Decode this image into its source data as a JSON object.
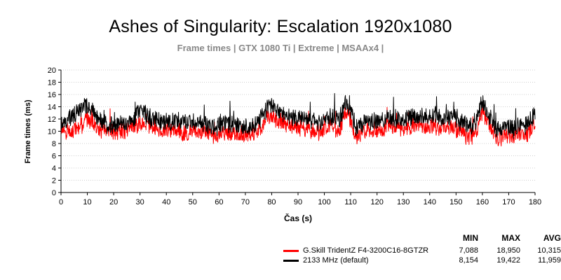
{
  "chart_data": {
    "type": "line",
    "title": "Ashes of Singularity: Escalation 1920x1080",
    "subtitle": "Frame times | GTX 1080 Ti | Extreme | MSAAx4 |",
    "xlabel": "Čas (s)",
    "ylabel": "Frame times (ms)",
    "xlim": [
      0,
      180
    ],
    "ylim": [
      0,
      20
    ],
    "x_ticks": [
      "0",
      "10",
      "20",
      "30",
      "40",
      "50",
      "60",
      "70",
      "80",
      "90",
      "100",
      "110",
      "120",
      "130",
      "140",
      "150",
      "160",
      "170",
      "180"
    ],
    "y_ticks": [
      "0",
      "2",
      "4",
      "6",
      "8",
      "10",
      "12",
      "14",
      "16",
      "18",
      "20"
    ],
    "legend_headers": {
      "min": "MIN",
      "max": "MAX",
      "avg": "AVG"
    },
    "series": [
      {
        "name": "G.Skill TridentZ F4-3200C16-8GTZR",
        "color": "#ff0000",
        "min": "7,088",
        "max": "18,950",
        "avg": "10,315",
        "x": [
          0,
          2,
          4,
          6,
          8,
          10,
          12,
          14,
          16,
          18,
          20,
          22,
          24,
          26,
          28,
          30,
          32,
          34,
          36,
          38,
          40,
          42,
          44,
          46,
          48,
          50,
          52,
          54,
          56,
          58,
          60,
          62,
          64,
          66,
          68,
          70,
          72,
          74,
          76,
          78,
          80,
          82,
          84,
          86,
          88,
          90,
          92,
          94,
          96,
          98,
          100,
          102,
          104,
          106,
          108,
          110,
          112,
          114,
          116,
          118,
          120,
          122,
          124,
          126,
          128,
          130,
          132,
          134,
          136,
          138,
          140,
          142,
          144,
          146,
          148,
          150,
          152,
          154,
          156,
          158,
          160,
          162,
          164,
          166,
          168,
          170,
          172,
          174,
          176,
          178,
          180
        ],
        "y": [
          10.0,
          9.7,
          10.0,
          10.5,
          11.2,
          12.0,
          11.0,
          10.4,
          10.2,
          10.0,
          9.8,
          10.0,
          10.2,
          10.4,
          10.6,
          11.5,
          11.0,
          10.6,
          10.4,
          10.0,
          10.2,
          10.0,
          10.2,
          9.8,
          9.6,
          10.0,
          10.2,
          9.8,
          9.6,
          9.4,
          9.6,
          9.8,
          9.8,
          9.6,
          9.4,
          9.2,
          9.6,
          9.8,
          10.4,
          12.0,
          12.4,
          12.0,
          11.6,
          11.0,
          10.8,
          10.4,
          10.6,
          10.2,
          10.0,
          9.8,
          10.0,
          10.8,
          10.4,
          10.6,
          13.5,
          12.0,
          9.2,
          9.6,
          10.0,
          10.2,
          10.0,
          10.4,
          10.6,
          10.6,
          10.6,
          10.2,
          10.6,
          11.0,
          10.8,
          10.6,
          10.8,
          10.8,
          10.6,
          10.8,
          10.6,
          10.2,
          10.0,
          9.0,
          9.2,
          10.4,
          13.0,
          11.5,
          9.8,
          8.8,
          9.2,
          9.4,
          9.0,
          9.6,
          9.2,
          10.2,
          10.8
        ],
        "spread": 1.6,
        "seed": 7
      },
      {
        "name": "2133 MHz (default)",
        "color": "#000000",
        "min": "8,154",
        "max": "19,422",
        "avg": "11,959",
        "x": [
          0,
          2,
          4,
          6,
          8,
          10,
          12,
          14,
          16,
          18,
          20,
          22,
          24,
          26,
          28,
          30,
          32,
          34,
          36,
          38,
          40,
          42,
          44,
          46,
          48,
          50,
          52,
          54,
          56,
          58,
          60,
          62,
          64,
          66,
          68,
          70,
          72,
          74,
          76,
          78,
          80,
          82,
          84,
          86,
          88,
          90,
          92,
          94,
          96,
          98,
          100,
          102,
          104,
          106,
          108,
          110,
          112,
          114,
          116,
          118,
          120,
          122,
          124,
          126,
          128,
          130,
          132,
          134,
          136,
          138,
          140,
          142,
          144,
          146,
          148,
          150,
          152,
          154,
          156,
          158,
          160,
          162,
          164,
          166,
          168,
          170,
          172,
          174,
          176,
          178,
          180
        ],
        "y": [
          11.0,
          11.4,
          12.4,
          13.0,
          13.6,
          14.4,
          13.4,
          12.0,
          11.4,
          11.0,
          11.0,
          11.2,
          11.2,
          11.6,
          12.0,
          13.6,
          12.8,
          12.0,
          11.8,
          11.4,
          11.4,
          11.4,
          11.8,
          11.4,
          11.2,
          11.6,
          11.8,
          11.2,
          11.0,
          10.6,
          11.0,
          11.2,
          11.2,
          11.0,
          10.8,
          10.6,
          11.0,
          11.2,
          12.0,
          13.6,
          14.0,
          13.4,
          13.0,
          12.4,
          12.4,
          12.0,
          12.2,
          12.0,
          11.8,
          11.4,
          11.8,
          12.4,
          12.0,
          12.2,
          14.6,
          13.2,
          10.6,
          11.0,
          11.6,
          11.8,
          11.6,
          12.0,
          12.2,
          12.2,
          12.2,
          11.8,
          12.2,
          12.6,
          12.4,
          12.4,
          12.6,
          12.6,
          12.2,
          12.4,
          12.4,
          11.8,
          11.6,
          10.6,
          10.8,
          12.2,
          15.0,
          13.0,
          11.2,
          10.2,
          10.6,
          10.8,
          10.4,
          11.0,
          10.6,
          12.0,
          12.6
        ],
        "spread": 1.7,
        "seed": 13
      }
    ]
  }
}
